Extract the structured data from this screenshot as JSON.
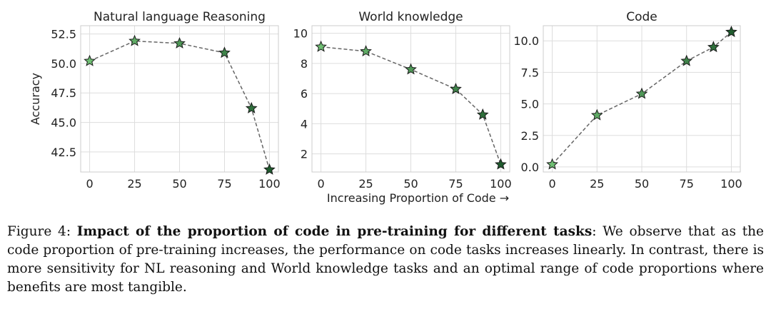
{
  "chart_data": [
    {
      "type": "line",
      "title": "Natural language Reasoning",
      "xlabel": "",
      "ylabel": "Accuracy",
      "x": [
        0,
        25,
        50,
        75,
        90,
        100
      ],
      "series": [
        {
          "name": "Natural language Reasoning",
          "values": [
            50.2,
            51.9,
            51.7,
            50.9,
            46.2,
            41.0
          ]
        }
      ],
      "xticks": [
        "0",
        "25",
        "50",
        "75",
        "100"
      ],
      "yticks": [
        "42.5",
        "45.0",
        "47.5",
        "50.0",
        "52.5"
      ],
      "xlim": [
        -5,
        105
      ],
      "ylim": [
        40.8,
        53.2
      ],
      "marker": "star",
      "grid": true
    },
    {
      "type": "line",
      "title": "World knowledge",
      "xlabel": "Increasing Proportion of Code →",
      "ylabel": "",
      "x": [
        0,
        25,
        50,
        75,
        90,
        100
      ],
      "series": [
        {
          "name": "World knowledge",
          "values": [
            9.1,
            8.8,
            7.6,
            6.3,
            4.6,
            1.3
          ]
        }
      ],
      "xticks": [
        "0",
        "25",
        "50",
        "75",
        "100"
      ],
      "yticks": [
        "2",
        "4",
        "6",
        "8",
        "10"
      ],
      "xlim": [
        -5,
        105
      ],
      "ylim": [
        0.8,
        10.5
      ],
      "marker": "star",
      "grid": true
    },
    {
      "type": "line",
      "title": "Code",
      "xlabel": "",
      "ylabel": "",
      "x": [
        0,
        25,
        50,
        75,
        90,
        100
      ],
      "series": [
        {
          "name": "Code",
          "values": [
            0.2,
            4.1,
            5.8,
            8.4,
            9.5,
            10.7
          ]
        }
      ],
      "xticks": [
        "0",
        "25",
        "50",
        "75",
        "100"
      ],
      "yticks": [
        "0.0",
        "2.5",
        "5.0",
        "7.5",
        "10.0"
      ],
      "xlim": [
        -5,
        105
      ],
      "ylim": [
        -0.4,
        11.2
      ],
      "marker": "star",
      "grid": true
    }
  ],
  "caption": {
    "prefix": "Figure 4: ",
    "bold": "Impact of the proportion of code in pre-training for different tasks",
    "rest": ": We observe that as the code proportion of pre-training increases, the performance on code tasks increases linearly. In contrast, there is more sensitivity for NL reasoning and World knowledge tasks and an optimal range of code proportions where benefits are most tangible."
  },
  "colors": {
    "line": "#666666",
    "grid": "#dddddd",
    "axis": "#cccccc",
    "marker_light": "#6fbf73",
    "marker_dark": "#1f5c2e",
    "marker_edge": "#1a1a1a"
  }
}
